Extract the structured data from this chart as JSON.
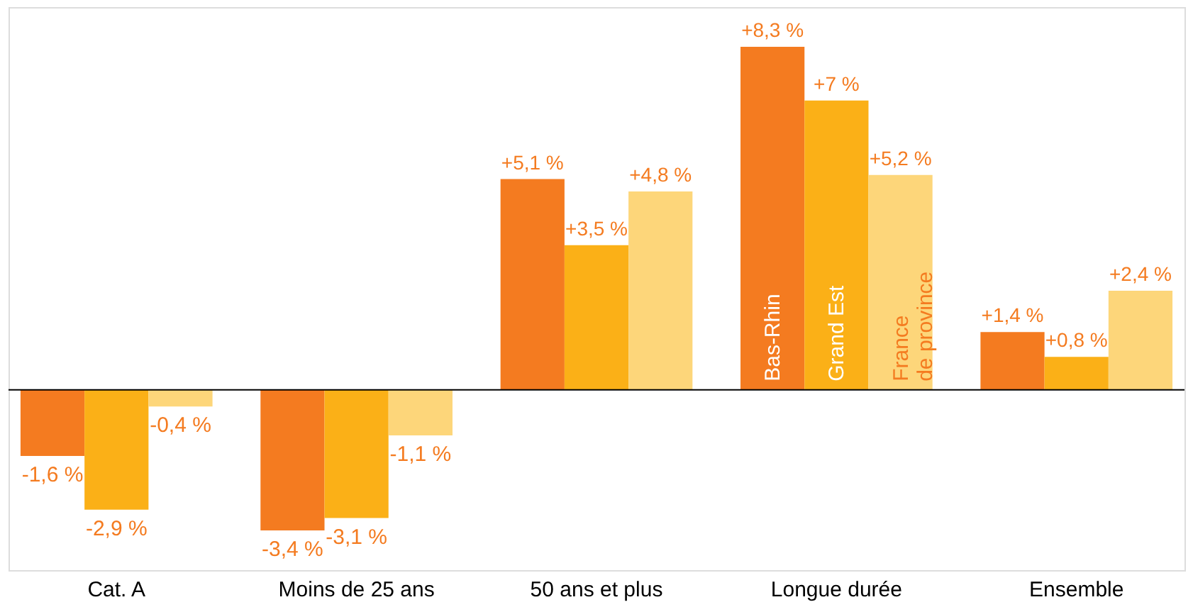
{
  "chart_data": {
    "type": "bar",
    "categories": [
      "Cat. A",
      "Moins de 25 ans",
      "50 ans et plus",
      "Longue durée",
      "Ensemble"
    ],
    "series": [
      {
        "name": "Bas-Rhin",
        "color": "#f47b20",
        "values": [
          -1.6,
          -3.4,
          5.1,
          8.3,
          1.4
        ],
        "value_labels": [
          "-1,6 %",
          "-3,4 %",
          "+5,1 %",
          "+8,3 %",
          "+1,4 %"
        ]
      },
      {
        "name": "Grand Est",
        "color": "#fbb017",
        "values": [
          -2.9,
          -3.1,
          3.5,
          7,
          0.8
        ],
        "value_labels": [
          "-2,9 %",
          "-3,1 %",
          "+3,5 %",
          "+7 %",
          "+0,8 %"
        ]
      },
      {
        "name": "France de province",
        "color": "#fdd67a",
        "values": [
          -0.4,
          -1.1,
          4.8,
          5.2,
          2.4
        ],
        "value_labels": [
          "-0,4 %",
          "-1,1 %",
          "+4,8 %",
          "+5,2 %",
          "+2,4 %"
        ]
      }
    ],
    "ref_lines": [
      {
        "axis": "y",
        "value": 0,
        "color": "#000000"
      }
    ],
    "grid": false,
    "legend": false
  }
}
